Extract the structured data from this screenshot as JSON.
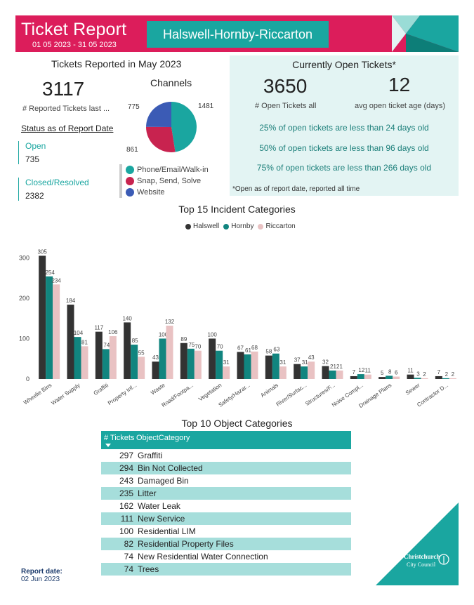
{
  "header": {
    "title": "Ticket Report",
    "dates": "01 05 2023 - 31 05 2023",
    "area": "Halswell-Hornby-Riccarton"
  },
  "reported": {
    "title": "Tickets Reported in May 2023",
    "count": "3117",
    "count_label": "# Reported Tickets last ...",
    "status_title": "Status as of Report Date",
    "open_label": "Open",
    "open_value": "735",
    "closed_label": "Closed/Resolved",
    "closed_value": "2382"
  },
  "channels": {
    "title": "Channels",
    "slices": [
      {
        "label": "Phone/Email/Walk-in",
        "value": 1481,
        "color": "#1aa6a0"
      },
      {
        "label": "Snap, Send, Solve",
        "value": 861,
        "color": "#c8234f"
      },
      {
        "label": "Website",
        "value": 775,
        "color": "#3b5bb5"
      }
    ],
    "value_labels": [
      "1481",
      "861",
      "775"
    ]
  },
  "open_tickets": {
    "title": "Currently Open Tickets*",
    "count": "3650",
    "count_label": "# Open Tickets all",
    "avg_age": "12",
    "avg_age_label": "avg open ticket age (days)",
    "pct_lines": [
      "25% of open tickets are less than 24 days old",
      "50% of open tickets are less than 96 days old",
      "75% of open tickets are less than 266 days old"
    ],
    "note": "*Open as of report date, reported all time"
  },
  "chart_data": {
    "type": "bar",
    "title": "Top 15 Incident Categories",
    "categories": [
      "Wheelie Bins",
      "Water Supply",
      "Graffiti",
      "Property Inf...",
      "Waste",
      "Road/Footpa...",
      "Vegetation",
      "Safety/Hazar...",
      "Animals",
      "River/Surfac...",
      "Structures/F...",
      "Noise Compl...",
      "Drainage Plans",
      "Sewer",
      "Contractor D..."
    ],
    "series": [
      {
        "name": "Halswell",
        "color": "#333333",
        "values": [
          305,
          184,
          117,
          140,
          43,
          89,
          100,
          67,
          58,
          37,
          32,
          7,
          5,
          11,
          7
        ]
      },
      {
        "name": "Hornby",
        "color": "#11857f",
        "values": [
          254,
          104,
          74,
          85,
          100,
          75,
          70,
          61,
          63,
          31,
          21,
          12,
          8,
          3,
          2
        ]
      },
      {
        "name": "Riccarton",
        "color": "#e9c2c3",
        "values": [
          234,
          81,
          106,
          55,
          132,
          70,
          31,
          68,
          31,
          43,
          21,
          11,
          6,
          2,
          2
        ]
      }
    ],
    "yticks": [
      0,
      100,
      200,
      300
    ],
    "ylim": [
      0,
      330
    ],
    "grid": false,
    "legend": "top-center"
  },
  "objects": {
    "title": "Top 10 Object Categories",
    "col_count": "# Tickets",
    "col_category": "ObjectCategory",
    "rows": [
      {
        "count": "297",
        "category": "Graffiti"
      },
      {
        "count": "294",
        "category": "Bin Not Collected"
      },
      {
        "count": "243",
        "category": "Damaged Bin"
      },
      {
        "count": "235",
        "category": "Litter"
      },
      {
        "count": "162",
        "category": "Water Leak"
      },
      {
        "count": "111",
        "category": "New Service"
      },
      {
        "count": "100",
        "category": "Residential LIM"
      },
      {
        "count": "82",
        "category": "Residential Property Files"
      },
      {
        "count": "74",
        "category": "New Residential Water Connection"
      },
      {
        "count": "74",
        "category": "Trees"
      }
    ]
  },
  "footer": {
    "report_date_label": "Report date:",
    "report_date": "02 Jun 2023"
  },
  "logo": {
    "line1": "Christchurch",
    "line2": "City Council"
  }
}
